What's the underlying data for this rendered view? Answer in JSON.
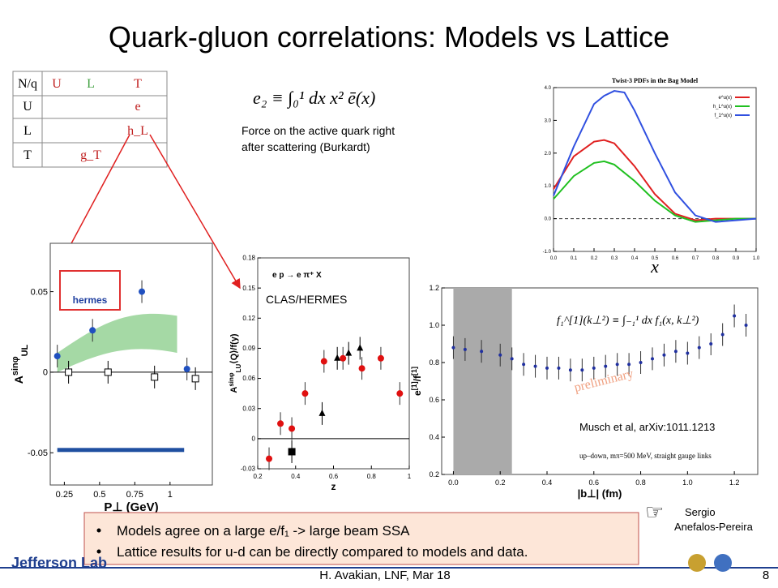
{
  "header": {
    "title": "Quark-gluon correlations: Models vs Lattice"
  },
  "table": {
    "rows": [
      [
        "N/q",
        "U",
        "L",
        "T"
      ],
      [
        "U",
        null,
        null,
        "e"
      ],
      [
        "L",
        null,
        null,
        "h_L"
      ],
      [
        "T",
        null,
        "g_T",
        null
      ]
    ]
  },
  "formula": "e₂ ≡ ∫₀¹ dx x² ē(x)",
  "note": [
    "Force on the active quark right",
    "after scattering (Burkardt)"
  ],
  "panels": {
    "bag": {
      "title": "Twist-3 PDFs in the Bag Model",
      "xlabel": "x",
      "xlim": [
        0,
        1
      ],
      "ylim": [
        -1,
        4
      ],
      "xticks": [
        {
          "value": 0,
          "label": "0.0"
        },
        0.1,
        0.2,
        0.3,
        0.4,
        0.5,
        0.6,
        0.7,
        0.8,
        0.9,
        {
          "value": 1,
          "label": "1.0"
        }
      ],
      "yticks": [
        {
          "value": -1,
          "label": "-1.0"
        },
        {
          "value": 0,
          "label": "0.0"
        },
        {
          "value": 1,
          "label": "1.0"
        },
        {
          "value": 2,
          "label": "2.0"
        },
        {
          "value": 3,
          "label": "3.0"
        },
        {
          "value": 4,
          "label": "4.0"
        }
      ],
      "series": [
        {
          "name": "e^u(x)",
          "color": "#e02020",
          "kind": "line",
          "x": [
            0,
            0.1,
            0.2,
            0.25,
            0.3,
            0.4,
            0.5,
            0.6,
            0.7,
            0.8,
            0.9,
            1
          ],
          "y": [
            0.9,
            1.9,
            2.35,
            2.4,
            2.3,
            1.6,
            0.75,
            0.15,
            -0.05,
            0,
            0,
            0
          ]
        },
        {
          "name": "h_L^u(x)",
          "color": "#20c020",
          "kind": "line",
          "x": [
            0,
            0.1,
            0.2,
            0.25,
            0.3,
            0.4,
            0.5,
            0.6,
            0.7,
            0.8,
            0.9,
            1
          ],
          "y": [
            0.6,
            1.3,
            1.7,
            1.75,
            1.65,
            1.15,
            0.55,
            0.1,
            -0.1,
            -0.05,
            0,
            0
          ]
        },
        {
          "name": "f_1^u(x)",
          "color": "#3050e0",
          "kind": "line",
          "x": [
            0,
            0.1,
            0.2,
            0.25,
            0.3,
            0.35,
            0.4,
            0.5,
            0.6,
            0.7,
            0.8,
            0.9,
            1
          ],
          "y": [
            0.7,
            2.2,
            3.5,
            3.75,
            3.9,
            3.85,
            3.3,
            2.0,
            0.8,
            0.1,
            -0.1,
            -0.05,
            0
          ]
        }
      ]
    },
    "hermes": {
      "logo": "hermes",
      "xlabel": "P⊥ (GeV)",
      "ylabel": [
        "A",
        "sinφ",
        "UL"
      ],
      "xlim": [
        0.15,
        1.3
      ],
      "ylim": [
        -0.07,
        0.08
      ],
      "xticks": [
        0.25,
        0.5,
        0.75,
        1
      ],
      "yticks": [
        -0.05,
        0,
        0.05
      ],
      "series": [
        {
          "color": "#2050c0",
          "kind": "points",
          "marker": "circle",
          "x": [
            0.2,
            0.45,
            0.8,
            1.12
          ],
          "y": [
            0.01,
            0.026,
            0.05,
            0.002
          ]
        },
        {
          "color": "#000000",
          "kind": "points",
          "marker": "square",
          "x": [
            0.28,
            0.56,
            0.89,
            1.18
          ],
          "y": [
            0,
            0,
            -0.003,
            -0.004
          ]
        }
      ]
    },
    "clas": {
      "label": "CLAS/HERMES",
      "reaction": "e p → e π⁺ X",
      "xlabel": "z",
      "ylabel": [
        "A",
        "sinφ",
        "LU",
        "⟨Q⟩/f(y)"
      ],
      "xlim": [
        0.2,
        1
      ],
      "ylim": [
        -0.03,
        0.18
      ],
      "xticks": [
        0.2,
        0.4,
        0.6,
        0.8,
        1
      ],
      "yticks": [
        -0.03,
        0,
        0.03,
        0.06,
        0.09,
        0.12,
        0.15,
        0.18
      ],
      "series": [
        {
          "color": "#e01010",
          "kind": "points",
          "marker": "circle",
          "x": [
            0.26,
            0.32,
            0.38,
            0.45,
            0.55,
            0.65,
            0.75,
            0.85,
            0.95
          ],
          "y": [
            -0.02,
            0.015,
            0.01,
            0.045,
            0.077,
            0.08,
            0.07,
            0.08,
            0.045
          ]
        },
        {
          "color": "#000000",
          "kind": "points",
          "marker": "triangle",
          "x": [
            0.54,
            0.62,
            0.68,
            0.74
          ],
          "y": [
            0.025,
            0.08,
            0.085,
            0.09
          ]
        },
        {
          "color": "#000000",
          "kind": "points",
          "marker": "square",
          "x": [
            0.38
          ],
          "y": [
            -0.013
          ]
        }
      ]
    },
    "lattice": {
      "formula": "f₁^[1](k⊥²) ≡ ∫₋₁¹ dx f₁(x, k⊥²)",
      "watermark": "preliminary",
      "citation": "Musch et al, arXiv:1011.1213",
      "caption": "up–down, mπ=500 MeV, straight gauge links",
      "xlabel": "|b⊥| (fm)",
      "ylabel": [
        "e",
        "[1]",
        "/f",
        "[1]"
      ],
      "xlim": [
        -0.05,
        1.3
      ],
      "ylim": [
        0.2,
        1.2
      ],
      "xticks": [
        {
          "value": 0,
          "label": "0.0"
        },
        0.2,
        0.4,
        0.6,
        0.8,
        {
          "value": 1,
          "label": "1.0"
        },
        1.2
      ],
      "yticks": [
        0.2,
        0.4,
        0.6,
        0.8,
        {
          "value": 1,
          "label": "1.0"
        },
        1.2
      ],
      "series": [
        {
          "color": "#2030a0",
          "kind": "points",
          "marker": "circle",
          "x": [
            0,
            0.05,
            0.12,
            0.2,
            0.25,
            0.3,
            0.35,
            0.4,
            0.45,
            0.5,
            0.55,
            0.6,
            0.65,
            0.7,
            0.75,
            0.8,
            0.85,
            0.9,
            0.95,
            1,
            1.05,
            1.1,
            1.15,
            1.2,
            1.25
          ],
          "y": [
            0.88,
            0.87,
            0.86,
            0.84,
            0.82,
            0.79,
            0.78,
            0.77,
            0.77,
            0.76,
            0.76,
            0.77,
            0.78,
            0.79,
            0.79,
            0.8,
            0.82,
            0.84,
            0.86,
            0.85,
            0.88,
            0.9,
            0.95,
            1.05,
            1.0
          ]
        }
      ]
    }
  },
  "credit": [
    "Sergio",
    "Anefalos-Pereira"
  ],
  "bullets": [
    "Models agree on a large e/f₁ -> large beam SSA",
    "Lattice results for u-d can be directly compared to models and data."
  ],
  "footer": {
    "logo": "Jefferson Lab",
    "author": "H. Avakian, LNF, Mar 18",
    "page": "8"
  }
}
